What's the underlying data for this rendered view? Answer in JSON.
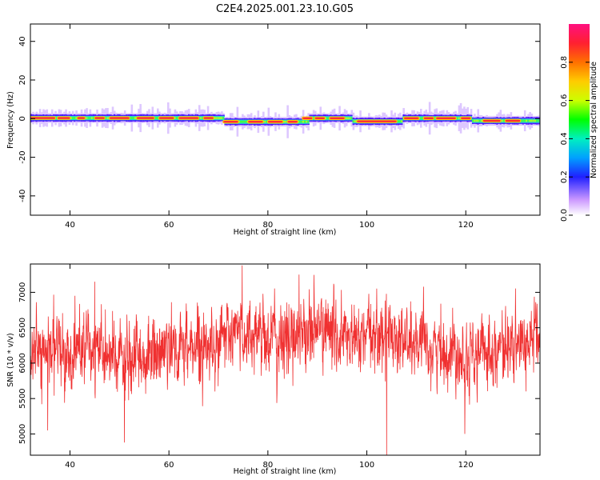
{
  "title": "C2E4.2025.001.23.10.G05",
  "chart_data": [
    {
      "type": "heatmap",
      "xlabel": "Height of straight line (km)",
      "ylabel": "Frequency (Hz)",
      "xlim": [
        32,
        135
      ],
      "ylim": [
        -50,
        49
      ],
      "x_ticks": [
        40,
        60,
        80,
        100,
        120
      ],
      "y_ticks": [
        -40,
        -20,
        0,
        20,
        40
      ],
      "colorbar": {
        "label": "Normalized spectral amplitude",
        "range": [
          0,
          1
        ],
        "ticks": [
          "0.0",
          "0.2",
          "0.4",
          "0.6",
          "0.8"
        ]
      },
      "centerline_hz": [
        {
          "x": [
            32,
            71
          ],
          "y": 0.3
        },
        {
          "x": [
            71,
            88
          ],
          "y": -1.6
        },
        {
          "x": [
            88,
            97
          ],
          "y": 0.2
        },
        {
          "x": [
            97,
            107
          ],
          "y": -1.4
        },
        {
          "x": [
            107,
            121
          ],
          "y": 0.2
        },
        {
          "x": [
            121,
            135
          ],
          "y": -1.1
        }
      ],
      "peak_segments_km": [
        [
          32,
          37
        ],
        [
          37.5,
          40
        ],
        [
          41.5,
          43
        ],
        [
          45,
          47
        ],
        [
          48,
          52
        ],
        [
          53.5,
          57
        ],
        [
          58,
          61
        ],
        [
          62,
          66
        ],
        [
          67,
          69
        ],
        [
          71,
          74
        ],
        [
          76,
          79
        ],
        [
          80,
          83
        ],
        [
          84,
          86
        ],
        [
          87,
          89
        ],
        [
          89.5,
          91.5
        ],
        [
          92.5,
          95.5
        ],
        [
          98,
          106
        ],
        [
          107.5,
          110.5
        ],
        [
          111.5,
          113.5
        ],
        [
          114,
          118
        ],
        [
          119,
          121
        ],
        [
          123.5,
          127
        ],
        [
          128,
          131
        ]
      ]
    },
    {
      "type": "line",
      "xlabel": "Height of straight line (km)",
      "ylabel": "SNR (10 * v/v)",
      "xlim": [
        32,
        135
      ],
      "ylim": [
        4700,
        7400
      ],
      "x_ticks": [
        40,
        60,
        80,
        100,
        120
      ],
      "y_ticks": [
        5000,
        5500,
        6000,
        6500,
        7000
      ],
      "color": "#f03030",
      "series": [
        {
          "x": [
            32,
            34,
            36,
            38,
            40,
            42,
            44,
            46,
            48,
            50,
            52,
            54,
            56,
            58,
            60,
            62,
            64,
            66,
            68,
            70,
            72,
            74,
            76,
            78,
            80,
            82,
            84,
            86,
            88,
            90,
            92,
            94,
            96,
            98,
            100,
            102,
            104,
            106,
            108,
            110,
            112,
            114,
            116,
            118,
            120,
            122,
            124,
            126,
            128,
            130,
            132,
            134
          ],
          "mean": [
            6150,
            6100,
            6150,
            6250,
            6050,
            6250,
            6200,
            6100,
            6100,
            6050,
            6000,
            6050,
            6100,
            6150,
            6300,
            6150,
            6250,
            6300,
            6250,
            6350,
            6350,
            6450,
            6400,
            6450,
            6400,
            6300,
            6300,
            6450,
            6450,
            6500,
            6450,
            6400,
            6350,
            6300,
            6350,
            6400,
            6450,
            6400,
            6300,
            6250,
            6200,
            6200,
            6150,
            6200,
            6100,
            6100,
            6200,
            6200,
            6250,
            6200,
            6300,
            6400
          ],
          "spread": [
            400,
            420,
            420,
            450,
            450,
            480,
            500,
            480,
            470,
            500,
            480,
            460,
            470,
            480,
            480,
            460,
            450,
            450,
            470,
            450,
            450,
            460,
            460,
            470,
            480,
            500,
            500,
            480,
            480,
            480,
            470,
            470,
            480,
            470,
            460,
            460,
            480,
            470,
            460,
            450,
            450,
            440,
            440,
            450,
            440,
            440,
            430,
            430,
            430,
            420,
            420,
            420
          ]
        }
      ],
      "notable_points": [
        {
          "x": 35.5,
          "y": 5050
        },
        {
          "x": 41,
          "y": 6950
        },
        {
          "x": 45,
          "y": 7150
        },
        {
          "x": 51,
          "y": 4880
        },
        {
          "x": 74.8,
          "y": 7380
        },
        {
          "x": 86.3,
          "y": 7250
        },
        {
          "x": 104,
          "y": 4700
        },
        {
          "x": 119.8,
          "y": 5000
        }
      ]
    }
  ]
}
